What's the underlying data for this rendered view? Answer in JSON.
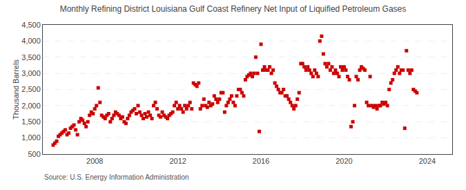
{
  "chart_data": {
    "type": "scatter",
    "title": "Monthly Refining District Louisiana Gulf Coast Refinery Net Input of Liquified Petroleum Gases",
    "ylabel": "Thousand Barrels",
    "annotations": [
      "Source: U.S. Energy Information Administration"
    ],
    "color": "#cc0000",
    "marker": "square",
    "grid": "y",
    "xlim": [
      2005.5,
      2025.2
    ],
    "xticks": [
      2008,
      2012,
      2016,
      2020,
      2024
    ],
    "ylim": [
      500,
      4500
    ],
    "yticks": [
      500,
      {
        "value": 1000,
        "label": "1,000"
      },
      {
        "value": 1500,
        "label": "1,500"
      },
      {
        "value": 2000,
        "label": "2,000"
      },
      {
        "value": 2500,
        "label": "2,500"
      },
      {
        "value": 3000,
        "label": "3,000"
      },
      {
        "value": 3500,
        "label": "3,500"
      },
      {
        "value": 4000,
        "label": "4,000"
      },
      {
        "value": 4500,
        "label": "4,500"
      }
    ],
    "x": [
      2006.0,
      2006.083,
      2006.167,
      2006.25,
      2006.333,
      2006.417,
      2006.5,
      2006.583,
      2006.667,
      2006.75,
      2006.833,
      2006.917,
      2007.0,
      2007.083,
      2007.167,
      2007.25,
      2007.333,
      2007.417,
      2007.5,
      2007.583,
      2007.667,
      2007.75,
      2007.833,
      2007.917,
      2008.0,
      2008.083,
      2008.167,
      2008.25,
      2008.333,
      2008.417,
      2008.5,
      2008.583,
      2008.667,
      2008.75,
      2008.833,
      2008.917,
      2009.0,
      2009.083,
      2009.167,
      2009.25,
      2009.333,
      2009.417,
      2009.5,
      2009.583,
      2009.667,
      2009.75,
      2009.833,
      2009.917,
      2010.0,
      2010.083,
      2010.167,
      2010.25,
      2010.333,
      2010.417,
      2010.5,
      2010.583,
      2010.667,
      2010.75,
      2010.833,
      2010.917,
      2011.0,
      2011.083,
      2011.167,
      2011.25,
      2011.333,
      2011.417,
      2011.5,
      2011.583,
      2011.667,
      2011.75,
      2011.833,
      2011.917,
      2012.0,
      2012.083,
      2012.167,
      2012.25,
      2012.333,
      2012.417,
      2012.5,
      2012.583,
      2012.667,
      2012.75,
      2012.833,
      2012.917,
      2013.0,
      2013.083,
      2013.167,
      2013.25,
      2013.333,
      2013.417,
      2013.5,
      2013.583,
      2013.667,
      2013.75,
      2013.833,
      2013.917,
      2014.0,
      2014.083,
      2014.167,
      2014.25,
      2014.333,
      2014.417,
      2014.5,
      2014.583,
      2014.667,
      2014.75,
      2014.833,
      2014.917,
      2015.0,
      2015.083,
      2015.167,
      2015.25,
      2015.333,
      2015.417,
      2015.5,
      2015.583,
      2015.667,
      2015.75,
      2015.833,
      2015.917,
      2016.0,
      2016.083,
      2016.167,
      2016.25,
      2016.333,
      2016.417,
      2016.5,
      2016.583,
      2016.667,
      2016.75,
      2016.833,
      2016.917,
      2017.0,
      2017.083,
      2017.167,
      2017.25,
      2017.333,
      2017.417,
      2017.5,
      2017.583,
      2017.667,
      2017.75,
      2017.833,
      2017.917,
      2018.0,
      2018.083,
      2018.167,
      2018.25,
      2018.333,
      2018.417,
      2018.5,
      2018.583,
      2018.667,
      2018.75,
      2018.833,
      2018.917,
      2019.0,
      2019.083,
      2019.167,
      2019.25,
      2019.333,
      2019.417,
      2019.5,
      2019.583,
      2019.667,
      2019.75,
      2019.833,
      2019.917,
      2020.0,
      2020.083,
      2020.167,
      2020.25,
      2020.333,
      2020.417,
      2020.5,
      2020.583,
      2020.667,
      2020.75,
      2020.833,
      2020.917,
      2021.0,
      2021.083,
      2021.167,
      2021.25,
      2021.333,
      2021.417,
      2021.5,
      2021.583,
      2021.667,
      2021.75,
      2021.833,
      2021.917,
      2022.0,
      2022.083,
      2022.167,
      2022.25,
      2022.333,
      2022.417,
      2022.5,
      2022.583,
      2022.667,
      2022.75,
      2022.833,
      2022.917,
      2023.0,
      2023.083,
      2023.167,
      2023.25,
      2023.333,
      2023.417,
      2023.5
    ],
    "values": [
      780,
      840,
      900,
      1050,
      1100,
      1150,
      1200,
      1250,
      1100,
      1150,
      1300,
      1350,
      1400,
      1250,
      1100,
      1500,
      1600,
      1550,
      1450,
      1350,
      1500,
      1700,
      1800,
      1750,
      1900,
      2000,
      2550,
      2100,
      1700,
      1650,
      1600,
      1700,
      1750,
      1500,
      1600,
      1700,
      1800,
      1750,
      1700,
      1600,
      1650,
      1500,
      1450,
      1600,
      1700,
      1800,
      1850,
      1900,
      1750,
      2000,
      1800,
      1700,
      1600,
      1750,
      1650,
      1800,
      1700,
      1600,
      2000,
      2100,
      1900,
      1700,
      1650,
      1800,
      1700,
      1650,
      1600,
      1700,
      1750,
      1800,
      2000,
      2100,
      1900,
      2000,
      1900,
      1800,
      2000,
      1900,
      2000,
      2100,
      1900,
      2700,
      2650,
      2600,
      2700,
      1900,
      2000,
      2200,
      2000,
      1950,
      2100,
      2000,
      2050,
      2300,
      2200,
      2100,
      2200,
      2400,
      2400,
      1800,
      2000,
      2100,
      2200,
      2300,
      2100,
      2000,
      2300,
      2500,
      2500,
      2400,
      2300,
      2800,
      2900,
      2950,
      3000,
      2900,
      3000,
      3500,
      3000,
      1200,
      3900,
      3100,
      3200,
      3100,
      3100,
      3200,
      3000,
      3100,
      2700,
      2600,
      2500,
      2400,
      2400,
      2500,
      2300,
      2300,
      2200,
      2100,
      2000,
      1900,
      2000,
      2200,
      2400,
      3300,
      3300,
      3200,
      3100,
      3200,
      3100,
      3000,
      2900,
      3100,
      3000,
      2900,
      4000,
      4150,
      3600,
      3300,
      3200,
      3300,
      3100,
      3200,
      3000,
      3100,
      3000,
      2900,
      3200,
      3100,
      3200,
      3100,
      2900,
      2800,
      1350,
      1500,
      2000,
      2900,
      2800,
      3100,
      3200,
      3150,
      3100,
      2100,
      2000,
      2900,
      2000,
      1950,
      2000,
      1900,
      2000,
      2000,
      2100,
      2050,
      2100,
      2000,
      2500,
      2700,
      2800,
      3000,
      3100,
      3200,
      3000,
      3100,
      3100,
      1300,
      3700,
      3100,
      3000,
      3100,
      2500,
      2450,
      2400
    ]
  }
}
